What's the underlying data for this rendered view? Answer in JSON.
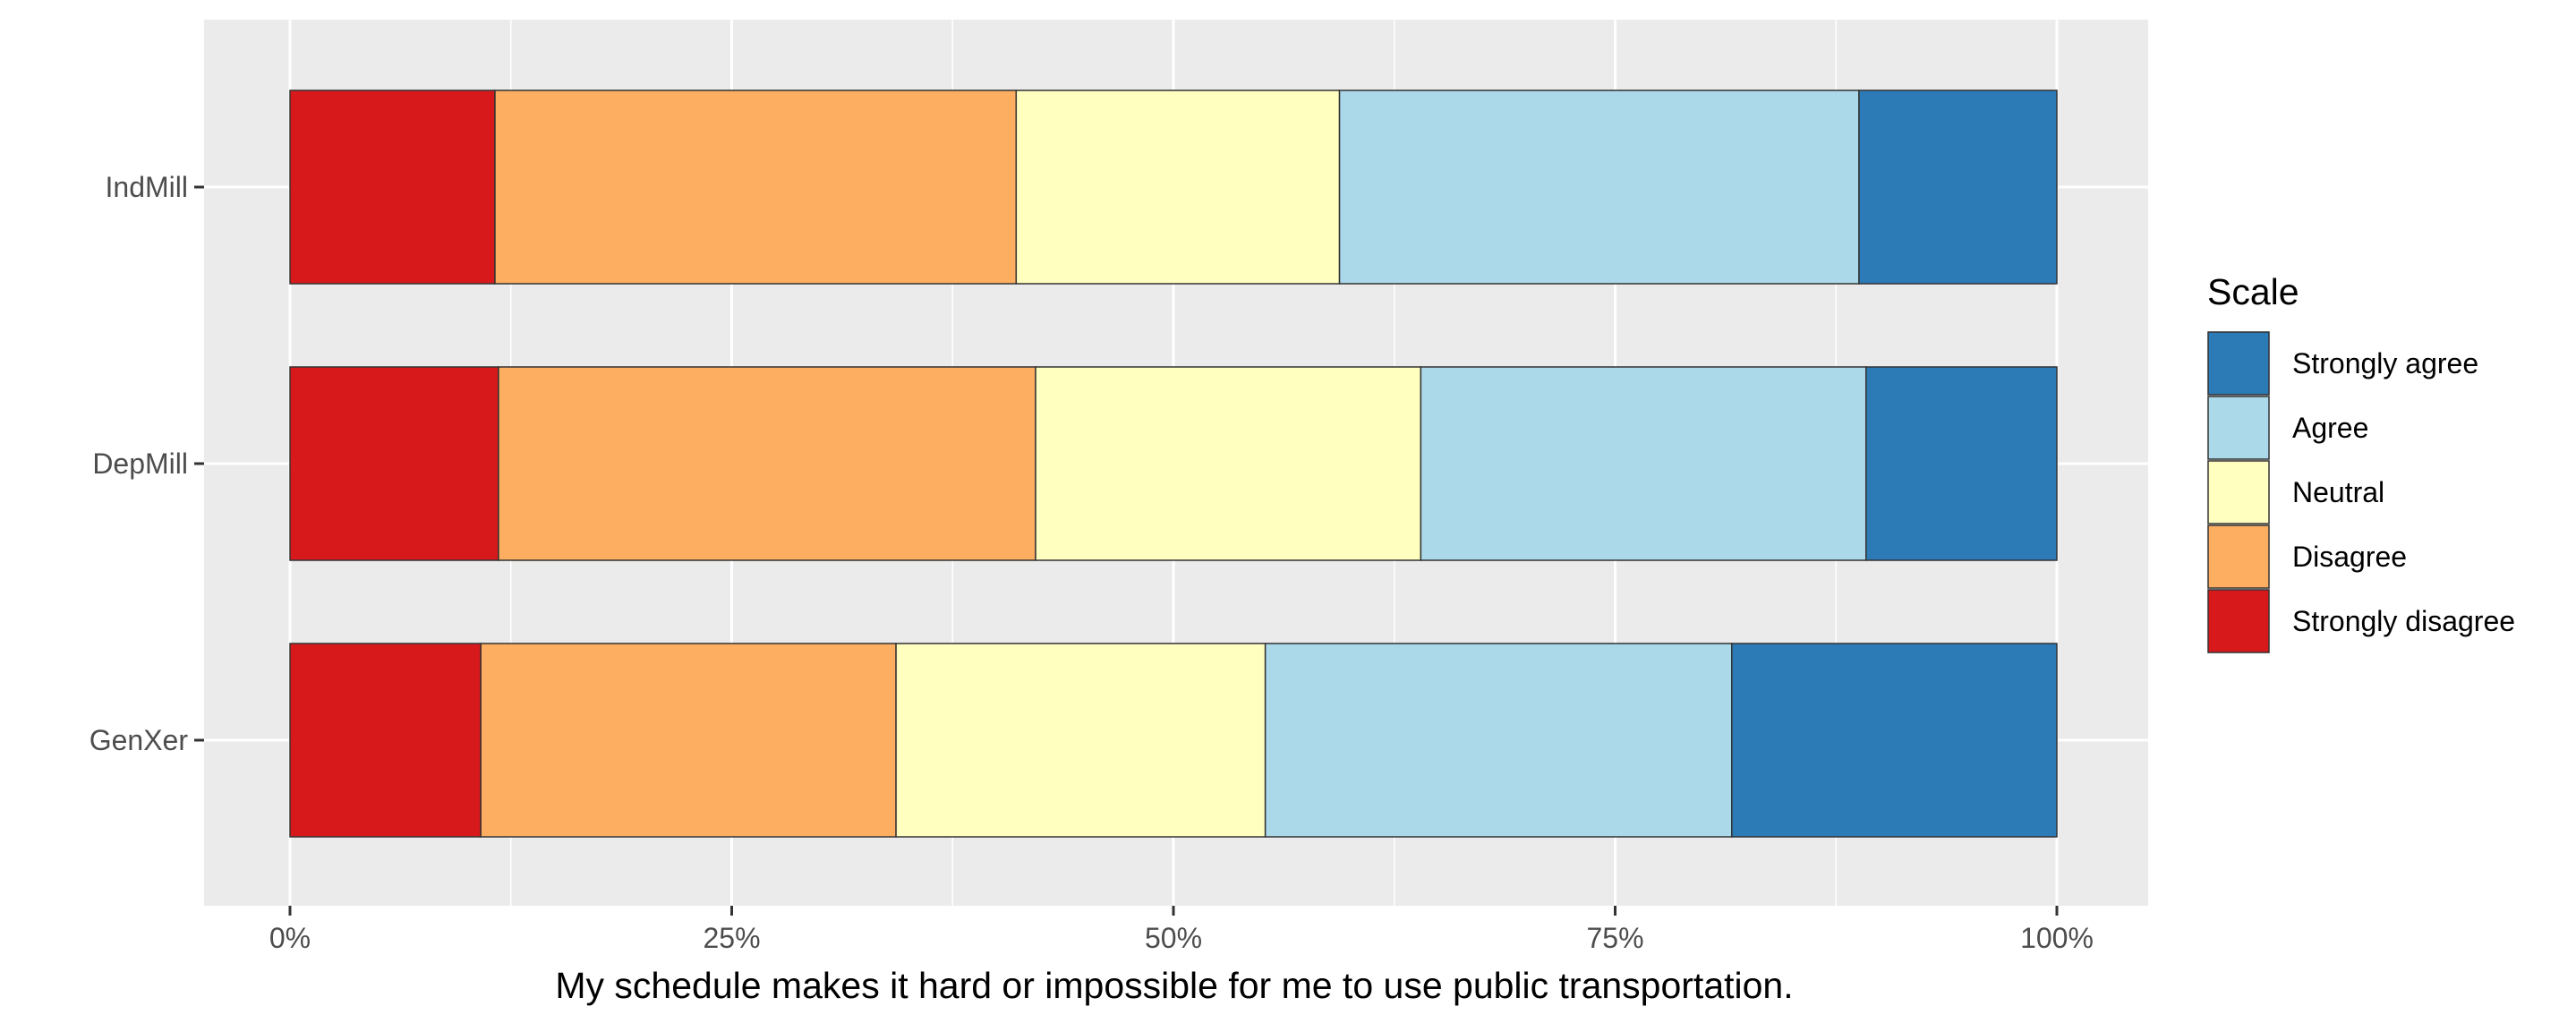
{
  "chart_data": {
    "type": "bar",
    "orientation": "horizontal",
    "stacking": "percent",
    "title": "",
    "xlabel": "My schedule makes it hard or impossible for me to use public transportation.",
    "ylabel": "",
    "xlim": [
      0,
      100
    ],
    "x_ticks": [
      "0%",
      "25%",
      "50%",
      "75%",
      "100%"
    ],
    "x_tick_values": [
      0,
      25,
      50,
      75,
      100
    ],
    "categories": [
      "IndMill",
      "DepMill",
      "GenXer"
    ],
    "series": [
      {
        "name": "Strongly disagree",
        "color": "#d7191c",
        "values": [
          11.6,
          11.8,
          10.8
        ]
      },
      {
        "name": "Disagree",
        "color": "#fdae61",
        "values": [
          29.5,
          30.4,
          23.5
        ]
      },
      {
        "name": "Neutral",
        "color": "#ffffbf",
        "values": [
          18.3,
          21.8,
          20.9
        ]
      },
      {
        "name": "Agree",
        "color": "#abd9e9",
        "values": [
          29.4,
          25.2,
          26.4
        ]
      },
      {
        "name": "Strongly agree",
        "color": "#2c7bb6",
        "values": [
          11.2,
          10.8,
          18.4
        ]
      }
    ],
    "legend": {
      "title": "Scale",
      "placement": "right",
      "order": [
        "Strongly agree",
        "Agree",
        "Neutral",
        "Disagree",
        "Strongly disagree"
      ]
    },
    "grid": true,
    "panel_background": "#ebebeb",
    "gridline_color": "#ffffff",
    "bar_outline_color": "#333333"
  }
}
